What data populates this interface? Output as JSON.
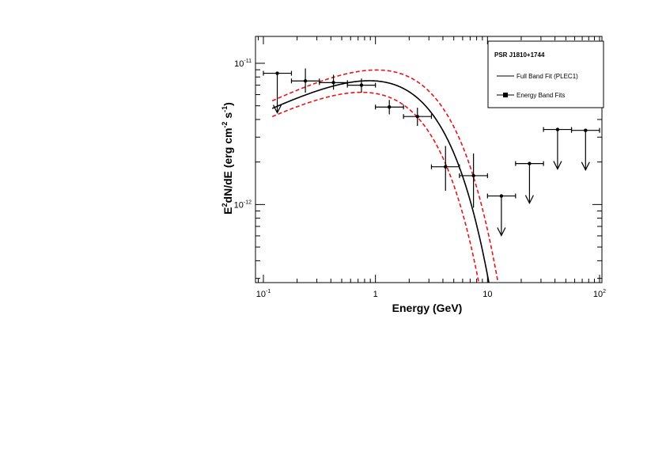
{
  "chart_data": {
    "type": "scatter",
    "xscale": "log",
    "yscale": "log",
    "xlim": [
      0.085,
      105
    ],
    "ylim": [
      2.8e-13,
      1.55e-11
    ],
    "xlabel": "Energy (GeV)",
    "ylabel_parts": {
      "a": "E",
      "b": "2",
      "c": "dN/dE (erg cm",
      "d": "-2",
      "e": " s",
      "f": "-1",
      "g": ")"
    },
    "xticks": [
      {
        "value": 0.1,
        "base": "10",
        "exp": "-1"
      },
      {
        "value": 1,
        "base": "1",
        "exp": ""
      },
      {
        "value": 10,
        "base": "10",
        "exp": ""
      },
      {
        "value": 100,
        "base": "10",
        "exp": "2"
      }
    ],
    "yticks": [
      {
        "value": 1e-11,
        "base": "10",
        "exp": "-11"
      },
      {
        "value": 1e-12,
        "base": "10",
        "exp": "-12"
      }
    ],
    "legend": {
      "title": "PSR J1810+1744",
      "entries": [
        "Full Band Fit (PLEC1)",
        "Energy Band Fits"
      ],
      "position": "top-right"
    },
    "model": {
      "name": "Full Band Fit (PLEC1)",
      "norm": 7.3e-12,
      "gamma": 1.6,
      "ecut": 2.2,
      "epiv": 0.3
    },
    "model_band": {
      "upper_norm": 8.2e-12,
      "upper_ecut": 2.55,
      "lower_norm": 6.45e-12,
      "lower_ecut": 1.87
    },
    "series": [
      {
        "name": "Energy Band Fits",
        "points": [
          {
            "x": 0.133,
            "y": 8.5e-12,
            "xlo": 0.1,
            "xhi": 0.178,
            "ylo": 8.5e-12,
            "yhi": 8.5e-12,
            "ul": true
          },
          {
            "x": 0.237,
            "y": 7.5e-12,
            "xlo": 0.178,
            "xhi": 0.316,
            "ylo": 6.2e-12,
            "yhi": 9.2e-12,
            "ul": false
          },
          {
            "x": 0.422,
            "y": 7.3e-12,
            "xlo": 0.316,
            "xhi": 0.562,
            "ylo": 6.5e-12,
            "yhi": 8.3e-12,
            "ul": false
          },
          {
            "x": 0.75,
            "y": 7e-12,
            "xlo": 0.562,
            "xhi": 1.0,
            "ylo": 6.2e-12,
            "yhi": 7.8e-12,
            "ul": false
          },
          {
            "x": 1.33,
            "y": 4.9e-12,
            "xlo": 1.0,
            "xhi": 1.78,
            "ylo": 4.35e-12,
            "yhi": 5.5e-12,
            "ul": false
          },
          {
            "x": 2.37,
            "y": 4.2e-12,
            "xlo": 1.78,
            "xhi": 3.16,
            "ylo": 3.6e-12,
            "yhi": 4.85e-12,
            "ul": false
          },
          {
            "x": 4.22,
            "y": 1.85e-12,
            "xlo": 3.16,
            "xhi": 5.62,
            "ylo": 1.25e-12,
            "yhi": 2.6e-12,
            "ul": false
          },
          {
            "x": 7.5,
            "y": 1.6e-12,
            "xlo": 5.62,
            "xhi": 10.0,
            "ylo": 9.5e-13,
            "yhi": 2.3e-12,
            "ul": false
          },
          {
            "x": 13.3,
            "y": 1.15e-12,
            "xlo": 10.0,
            "xhi": 17.8,
            "ylo": 1.15e-12,
            "yhi": 1.15e-12,
            "ul": true
          },
          {
            "x": 23.7,
            "y": 1.95e-12,
            "xlo": 17.8,
            "xhi": 31.6,
            "ylo": 1.95e-12,
            "yhi": 1.95e-12,
            "ul": true
          },
          {
            "x": 42.2,
            "y": 3.4e-12,
            "xlo": 31.6,
            "xhi": 56.2,
            "ylo": 3.4e-12,
            "yhi": 3.4e-12,
            "ul": true
          },
          {
            "x": 75.0,
            "y": 3.35e-12,
            "xlo": 56.2,
            "xhi": 100.0,
            "ylo": 3.35e-12,
            "yhi": 3.35e-12,
            "ul": true
          }
        ]
      }
    ],
    "colors": {
      "data": "#000000",
      "model": "#000000",
      "band": "#e8141b"
    }
  }
}
